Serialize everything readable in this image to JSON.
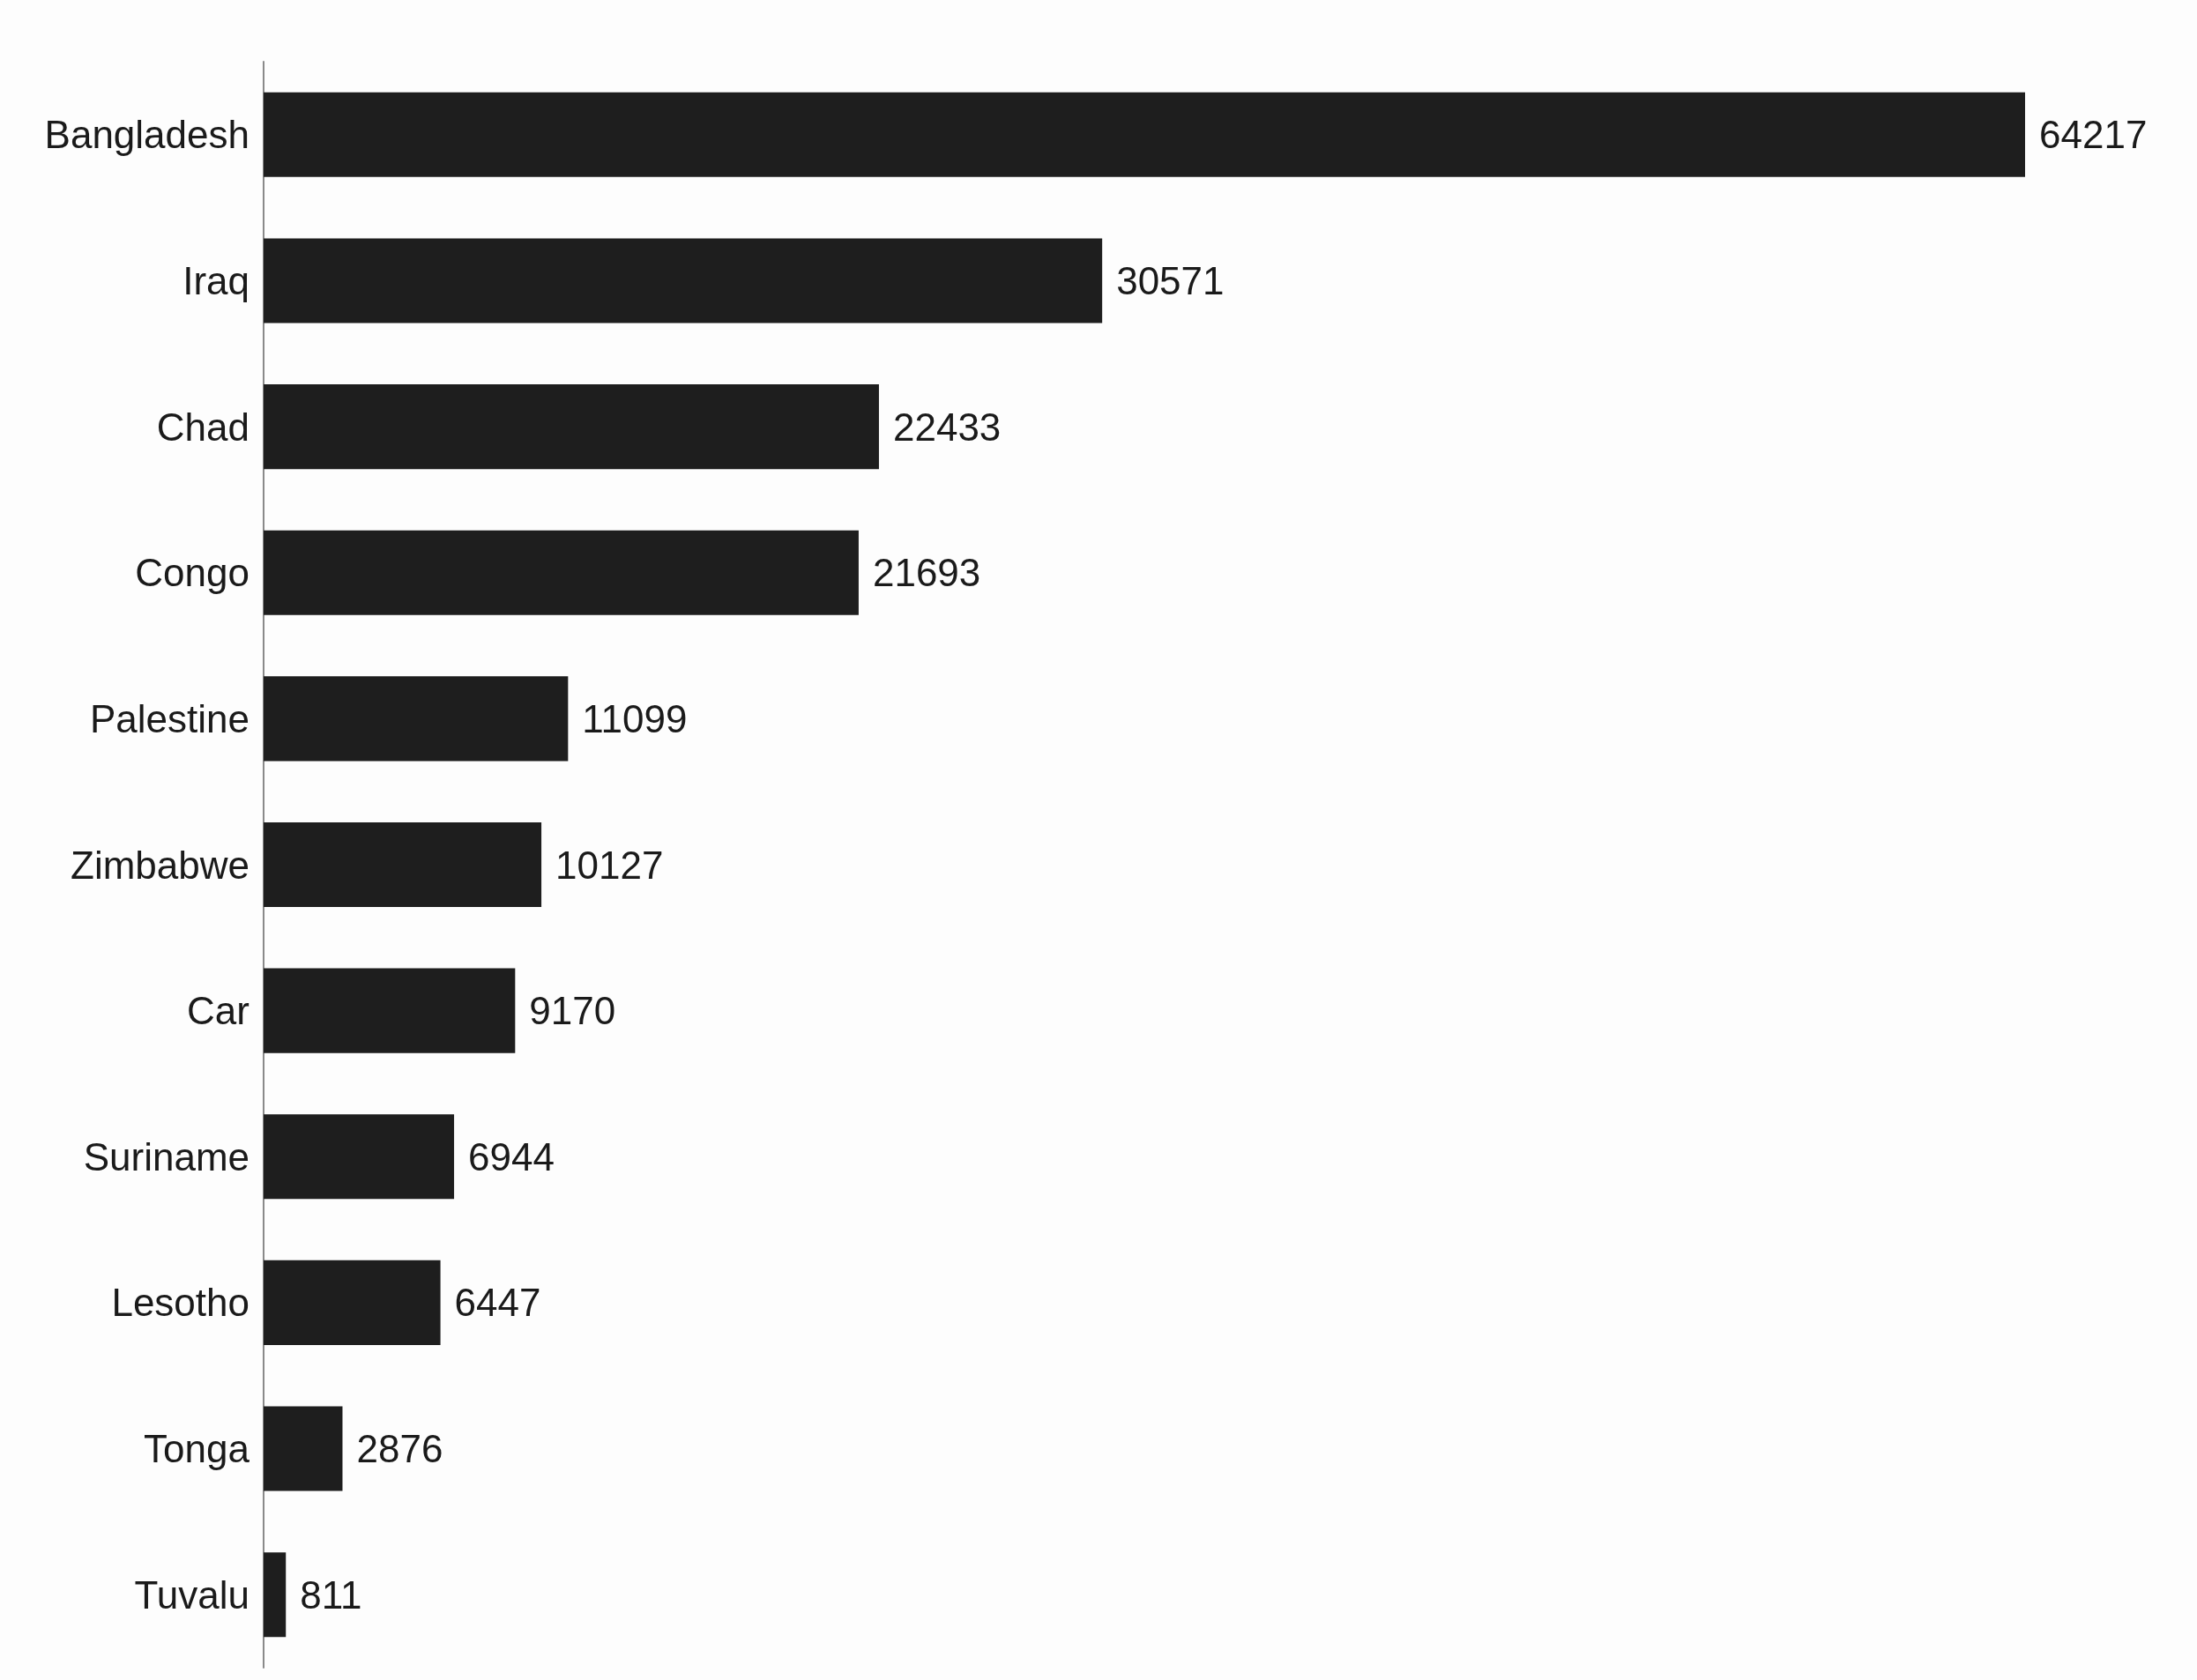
{
  "chart_data": {
    "type": "bar",
    "orientation": "horizontal",
    "tick_labels": "y",
    "categories": [
      "Bangladesh",
      "Iraq",
      "Chad",
      "Congo",
      "Palestine",
      "Zimbabwe",
      "Car",
      "Suriname",
      "Lesotho",
      "Tonga",
      "Tuvalu"
    ],
    "values": [
      64217,
      30571,
      22433,
      21693,
      11099,
      10127,
      9170,
      6944,
      6447,
      2876,
      811
    ],
    "color": "#1e1e1e",
    "data_labels": true
  }
}
